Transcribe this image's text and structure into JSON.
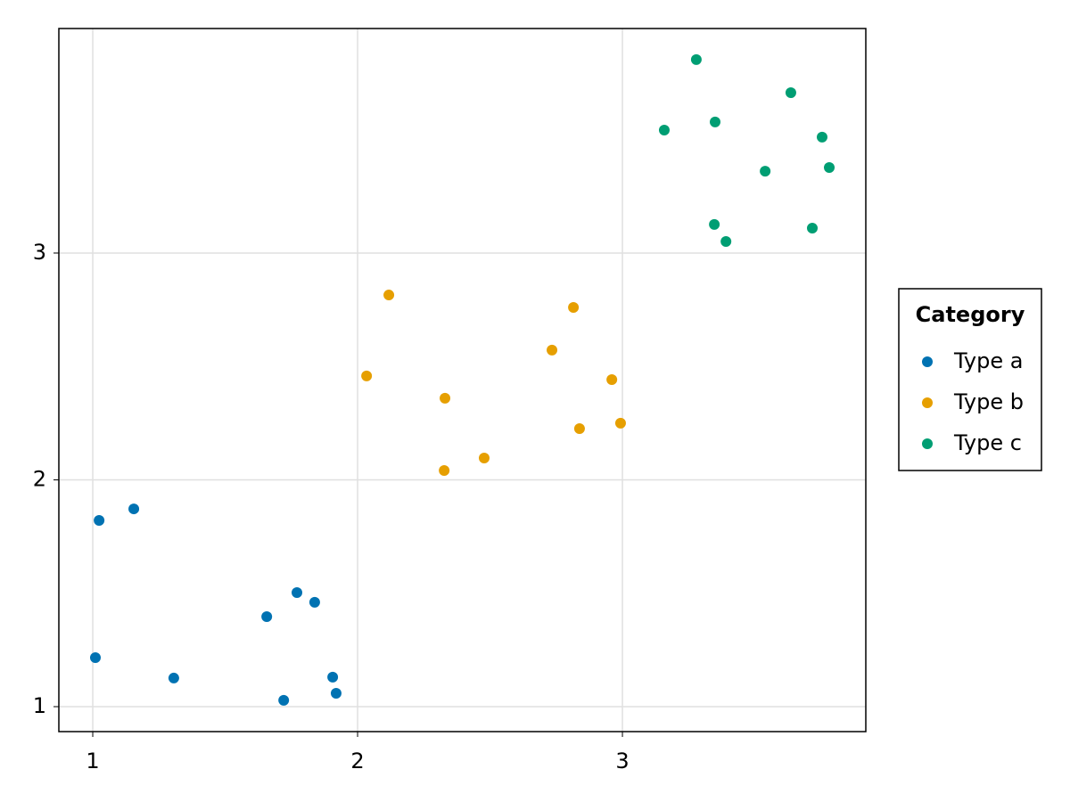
{
  "chart_data": {
    "type": "scatter",
    "xlim": [
      0.872,
      3.919
    ],
    "ylim": [
      0.89,
      3.99
    ],
    "xticks": [
      1,
      2,
      3
    ],
    "yticks": [
      1,
      2,
      3
    ],
    "grid": true,
    "legend_title": "Category",
    "legend": "right",
    "series": [
      {
        "name": "Type a",
        "color": "#0072b2",
        "x": [
          1.024,
          1.155,
          1.01,
          1.306,
          1.657,
          1.771,
          1.838,
          1.721,
          1.906,
          1.919
        ],
        "values": [
          1.821,
          1.872,
          1.216,
          1.126,
          1.397,
          1.503,
          1.46,
          1.028,
          1.13,
          1.059
        ]
      },
      {
        "name": "Type b",
        "color": "#e69f00",
        "x": [
          2.118,
          2.034,
          2.33,
          2.327,
          2.478,
          2.734,
          2.815,
          2.838,
          2.96,
          2.993
        ],
        "values": [
          2.815,
          2.458,
          2.36,
          2.041,
          2.096,
          2.572,
          2.76,
          2.226,
          2.442,
          2.25
        ]
      },
      {
        "name": "Type c",
        "color": "#009e73",
        "x": [
          3.279,
          3.636,
          3.158,
          3.35,
          3.754,
          3.781,
          3.539,
          3.347,
          3.391,
          3.717
        ],
        "values": [
          3.853,
          3.707,
          3.542,
          3.578,
          3.511,
          3.377,
          3.361,
          3.126,
          3.051,
          3.11
        ]
      }
    ]
  }
}
